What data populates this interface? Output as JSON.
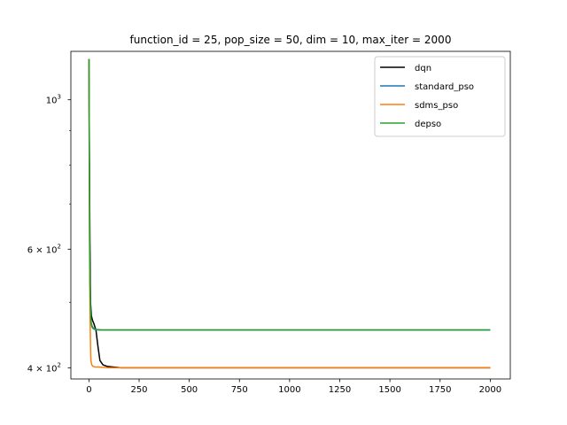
{
  "chart_data": {
    "type": "line",
    "title": "function_id = 25, pop_size = 50, dim = 10, max_iter = 2000",
    "xlabel": "",
    "ylabel": "",
    "y_scale": "log",
    "xlim": [
      -90,
      2100
    ],
    "ylim": [
      385,
      1180
    ],
    "grid": false,
    "legend_position": "top-right",
    "x_ticks": [
      0,
      250,
      500,
      750,
      1000,
      1250,
      1500,
      1750,
      2000
    ],
    "x_tick_labels": [
      "0",
      "250",
      "500",
      "750",
      "1000",
      "1250",
      "1500",
      "1750",
      "2000"
    ],
    "y_major_ticks": [
      400,
      600,
      1000
    ],
    "y_major_labels": [
      "4 × 10",
      "6 × 10",
      "10"
    ],
    "y_label_exponent": "2",
    "y_label_exponent_10": "3",
    "y_minor_ticks": [
      500,
      700,
      800,
      900
    ],
    "series": [
      {
        "name": "dqn",
        "color": "#000000",
        "x": [
          0,
          2,
          5,
          8,
          12,
          18,
          25,
          35,
          45,
          55,
          70,
          90,
          120,
          160,
          250,
          500,
          1000,
          1500,
          2000
        ],
        "y": [
          1150,
          900,
          620,
          500,
          478,
          470,
          465,
          455,
          430,
          410,
          404,
          402,
          401,
          400,
          400,
          400,
          400,
          400,
          400
        ]
      },
      {
        "name": "standard_pso",
        "color": "#1f77b4",
        "x": [
          0,
          2,
          4,
          7,
          10,
          15,
          22,
          30,
          40,
          60,
          100,
          500,
          1000,
          1500,
          2000
        ],
        "y": [
          1150,
          800,
          560,
          490,
          468,
          460,
          457,
          456,
          455.5,
          455,
          455,
          455,
          455,
          455,
          455
        ]
      },
      {
        "name": "sdms_pso",
        "color": "#ff7f0e",
        "x": [
          0,
          2,
          4,
          6,
          8,
          10,
          14,
          20,
          30,
          50,
          100,
          200,
          500,
          1000,
          1500,
          2000
        ],
        "y": [
          1150,
          800,
          540,
          470,
          430,
          410,
          404,
          402,
          401,
          401,
          400,
          400,
          400,
          400,
          400,
          400
        ]
      },
      {
        "name": "depso",
        "color": "#2ca02c",
        "x": [
          0,
          2,
          4,
          7,
          10,
          15,
          22,
          30,
          40,
          60,
          100,
          500,
          1000,
          1500,
          2000
        ],
        "y": [
          1150,
          820,
          570,
          495,
          470,
          462,
          458,
          456.5,
          456,
          455.5,
          455.5,
          455.5,
          455.5,
          455.5,
          455.5
        ]
      }
    ]
  }
}
